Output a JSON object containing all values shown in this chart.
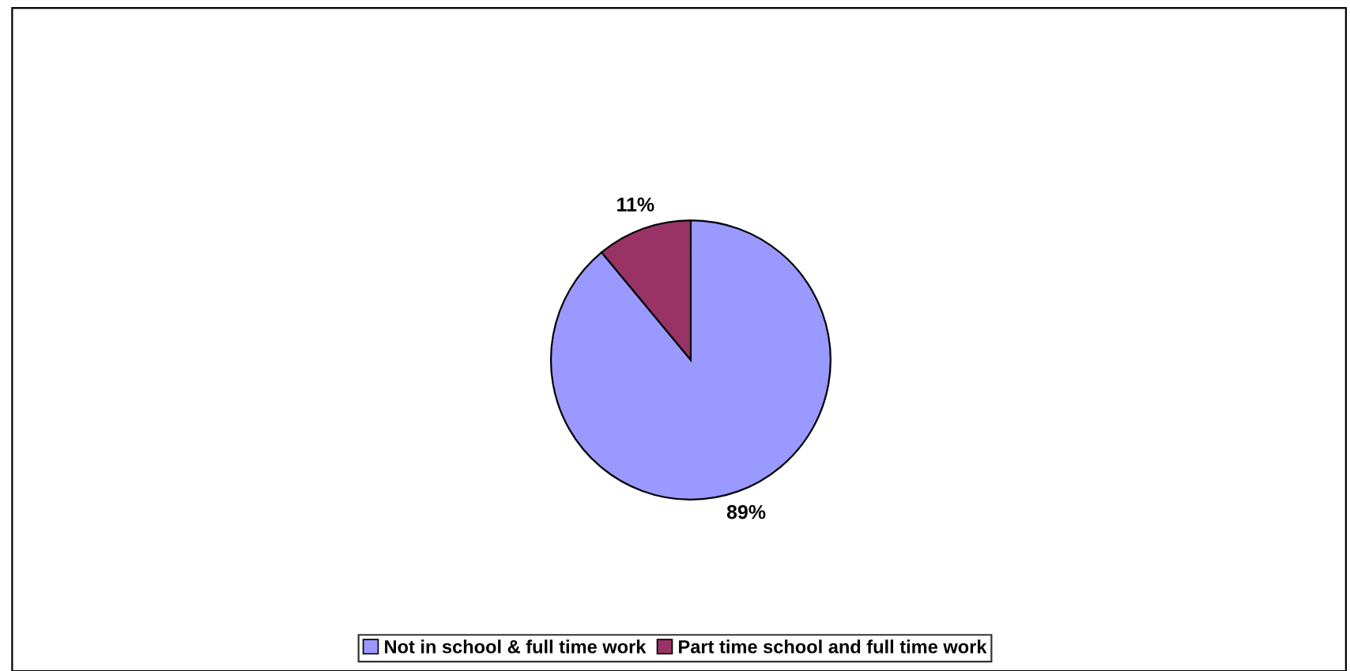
{
  "chart_data": {
    "type": "pie",
    "categories": [
      "Not in school & full time work",
      "Part time school and full time work"
    ],
    "values": [
      89,
      11
    ],
    "colors": [
      "#9999ff",
      "#993366"
    ],
    "value_labels": [
      "89%",
      "11%"
    ],
    "legend": "bottom"
  }
}
